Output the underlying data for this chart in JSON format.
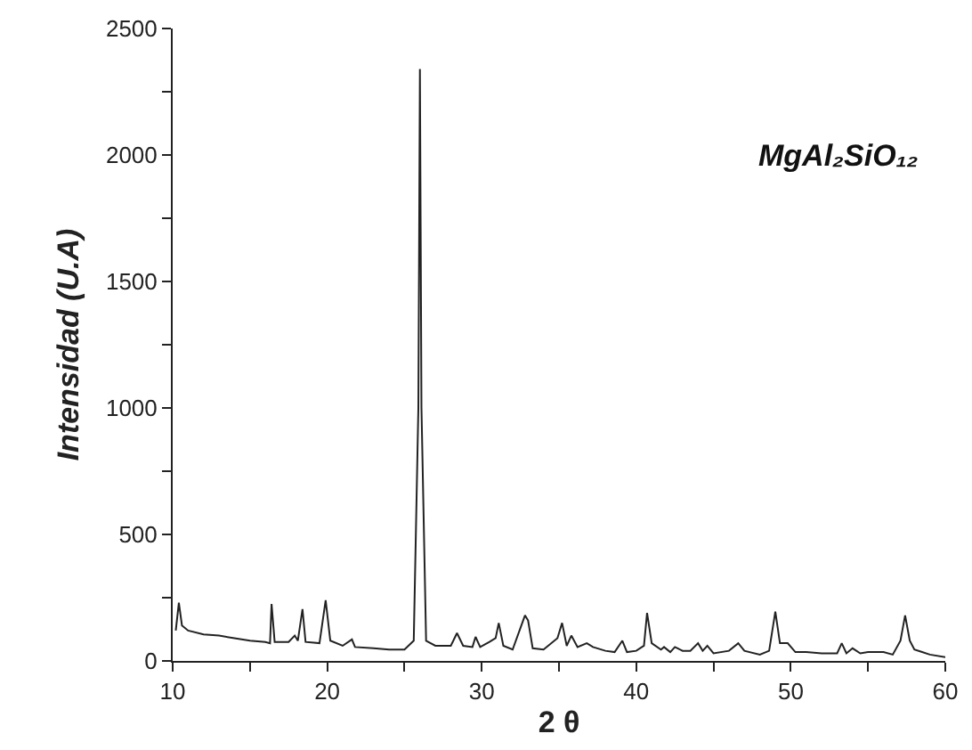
{
  "chart_data": {
    "type": "line",
    "xlabel": "2 θ",
    "ylabel": "Intensidad (U.A)",
    "annotations": [
      "MgAl₂SiO₁₂"
    ],
    "xlim": [
      10,
      60
    ],
    "ylim": [
      0,
      2500
    ],
    "xticks": [
      10,
      {
        "value": 15,
        "label": null
      },
      20,
      {
        "value": 25,
        "label": null
      },
      30,
      {
        "value": 35,
        "label": null
      },
      40,
      {
        "value": 45,
        "label": null
      },
      50,
      {
        "value": 55,
        "label": null
      },
      60
    ],
    "yticks": [
      0,
      {
        "value": 250,
        "label": null
      },
      500,
      {
        "value": 750,
        "label": null
      },
      1000,
      {
        "value": 1250,
        "label": null
      },
      1500,
      {
        "value": 1750,
        "label": null
      },
      2000,
      {
        "value": 2250,
        "label": null
      },
      2500
    ],
    "marker": "none",
    "line_style": "solid",
    "series": [
      {
        "color": "#222222",
        "x": [
          10.2,
          10.4,
          10.6,
          11,
          12,
          13,
          14,
          15,
          16,
          16.3,
          16.4,
          16.6,
          17.5,
          17.9,
          18.1,
          18.4,
          18.6,
          19.5,
          19.9,
          20.2,
          21,
          21.6,
          21.8,
          23,
          24,
          25,
          25.6,
          25.9,
          26.0,
          26.1,
          26.4,
          27,
          28,
          28.4,
          28.8,
          29.4,
          29.6,
          29.9,
          30.5,
          30.9,
          31.1,
          31.4,
          32,
          32.8,
          33,
          33.3,
          34,
          34.9,
          35.2,
          35.5,
          35.8,
          36.2,
          36.8,
          37.2,
          38,
          38.6,
          39.1,
          39.4,
          40,
          40.5,
          40.7,
          41.0,
          41.6,
          41.8,
          42.2,
          42.5,
          43,
          43.5,
          44,
          44.3,
          44.6,
          45,
          46,
          46.6,
          47,
          48,
          48.6,
          49.0,
          49.3,
          49.8,
          50.3,
          51,
          52,
          53,
          53.3,
          53.6,
          54,
          54.5,
          55,
          56,
          56.6,
          57.1,
          57.4,
          57.7,
          58,
          58.5,
          59,
          60
        ],
        "values": [
          120,
          230,
          140,
          120,
          105,
          100,
          90,
          80,
          75,
          70,
          225,
          75,
          75,
          100,
          80,
          205,
          75,
          70,
          240,
          80,
          60,
          85,
          55,
          50,
          45,
          45,
          80,
          1000,
          2340,
          1000,
          80,
          60,
          60,
          110,
          60,
          55,
          95,
          55,
          75,
          90,
          150,
          60,
          45,
          180,
          160,
          50,
          45,
          90,
          150,
          60,
          100,
          55,
          70,
          55,
          40,
          35,
          80,
          35,
          40,
          60,
          190,
          70,
          45,
          55,
          35,
          55,
          40,
          40,
          70,
          40,
          60,
          30,
          40,
          70,
          40,
          25,
          40,
          195,
          70,
          70,
          35,
          35,
          30,
          30,
          70,
          30,
          50,
          30,
          35,
          35,
          25,
          80,
          180,
          80,
          45,
          35,
          25,
          15
        ]
      }
    ]
  }
}
